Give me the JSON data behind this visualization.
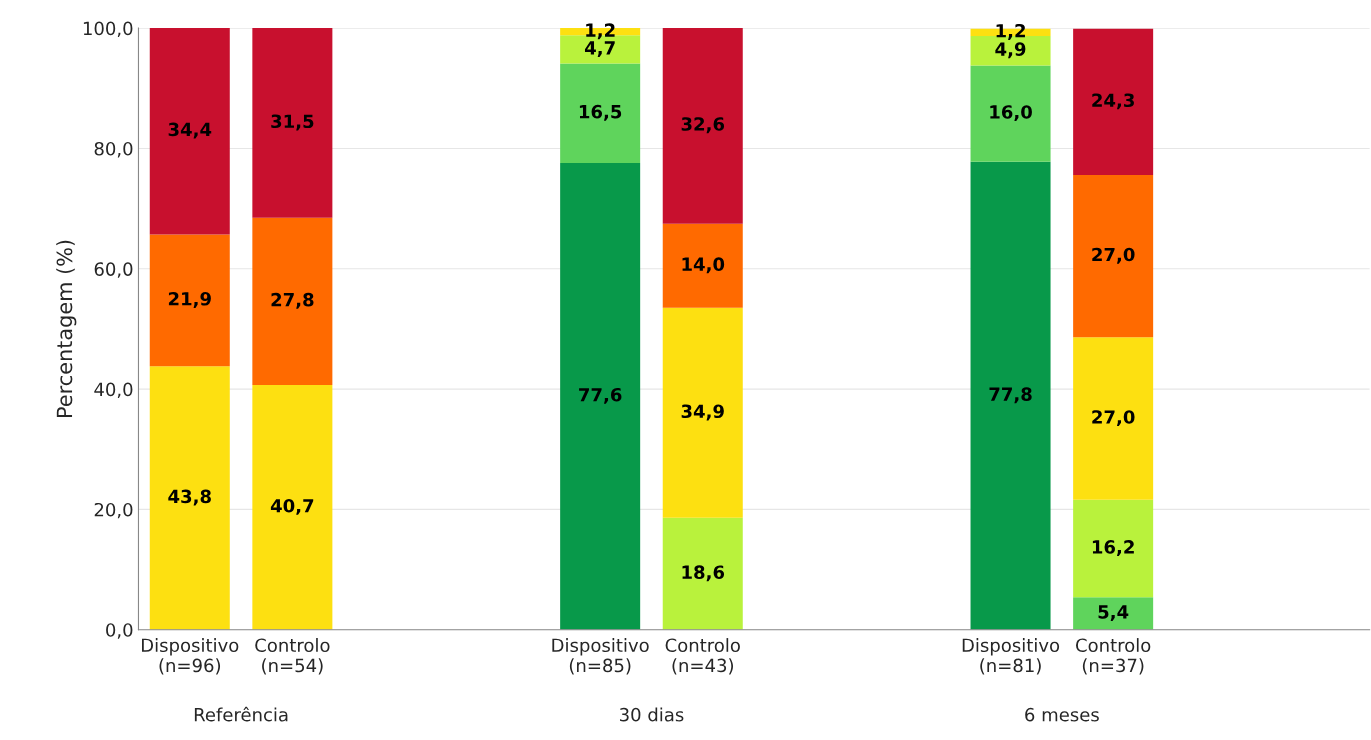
{
  "chart_data": {
    "type": "bar",
    "stacked": true,
    "ylabel": "Percentagem (%)",
    "categories": [
      "Dispositivo\n(n=96)",
      "Controlo\n(n=54)",
      null,
      null,
      "Dispositivo\n(n=85)",
      "Controlo\n(n=43)",
      null,
      null,
      "Dispositivo\n(n=81)",
      "Controlo\n(n=37)",
      null,
      null
    ],
    "series": [
      {
        "color": "#08994a",
        "values": [
          null,
          null,
          null,
          null,
          77.6,
          null,
          null,
          null,
          77.8,
          null,
          null,
          null
        ],
        "value_labels": [
          null,
          null,
          null,
          null,
          "77,6",
          null,
          null,
          null,
          "77,8",
          null,
          null,
          null
        ]
      },
      {
        "color": "#5fd45c",
        "values": [
          null,
          null,
          null,
          null,
          16.5,
          null,
          null,
          null,
          16.0,
          5.4,
          null,
          null
        ],
        "value_labels": [
          null,
          null,
          null,
          null,
          "16,5",
          null,
          null,
          null,
          "16,0",
          "5,4",
          null,
          null
        ]
      },
      {
        "color": "#b9f23c",
        "values": [
          null,
          null,
          null,
          null,
          4.7,
          18.6,
          null,
          null,
          4.9,
          16.2,
          null,
          null
        ],
        "value_labels": [
          null,
          null,
          null,
          null,
          "4,7",
          "18,6",
          null,
          null,
          "4,9",
          "16,2",
          null,
          null
        ]
      },
      {
        "color": "#fde011",
        "values": [
          43.8,
          40.7,
          null,
          null,
          1.2,
          34.9,
          null,
          null,
          1.2,
          27.0,
          null,
          null
        ],
        "value_labels": [
          "43,8",
          "40,7",
          null,
          null,
          "1,2",
          "34,9",
          null,
          null,
          "1,2",
          "27,0",
          null,
          null
        ]
      },
      {
        "color": "#ff6a00",
        "values": [
          21.9,
          27.8,
          null,
          null,
          null,
          14.0,
          null,
          null,
          null,
          27.0,
          null,
          null
        ],
        "value_labels": [
          "21,9",
          "27,8",
          null,
          null,
          null,
          "14,0",
          null,
          null,
          null,
          "27,0",
          null,
          null
        ]
      },
      {
        "color": "#c8102e",
        "values": [
          34.4,
          31.5,
          null,
          null,
          null,
          32.6,
          null,
          null,
          null,
          24.3,
          null,
          null
        ],
        "value_labels": [
          "34,4",
          "31,5",
          null,
          null,
          null,
          "32,6",
          null,
          null,
          null,
          "24,3",
          null,
          null
        ]
      }
    ],
    "ylim": [
      0,
      100
    ],
    "yticks": [
      {
        "value": 0,
        "label": "0,0"
      },
      {
        "value": 20,
        "label": "20,0"
      },
      {
        "value": 40,
        "label": "40,0"
      },
      {
        "value": 60,
        "label": "60,0"
      },
      {
        "value": 80,
        "label": "80,0"
      },
      {
        "value": 100,
        "label": "100,0"
      }
    ],
    "grid": "y",
    "legend": false,
    "annotations": [
      "Referência",
      "30 dias",
      "6 meses"
    ]
  }
}
